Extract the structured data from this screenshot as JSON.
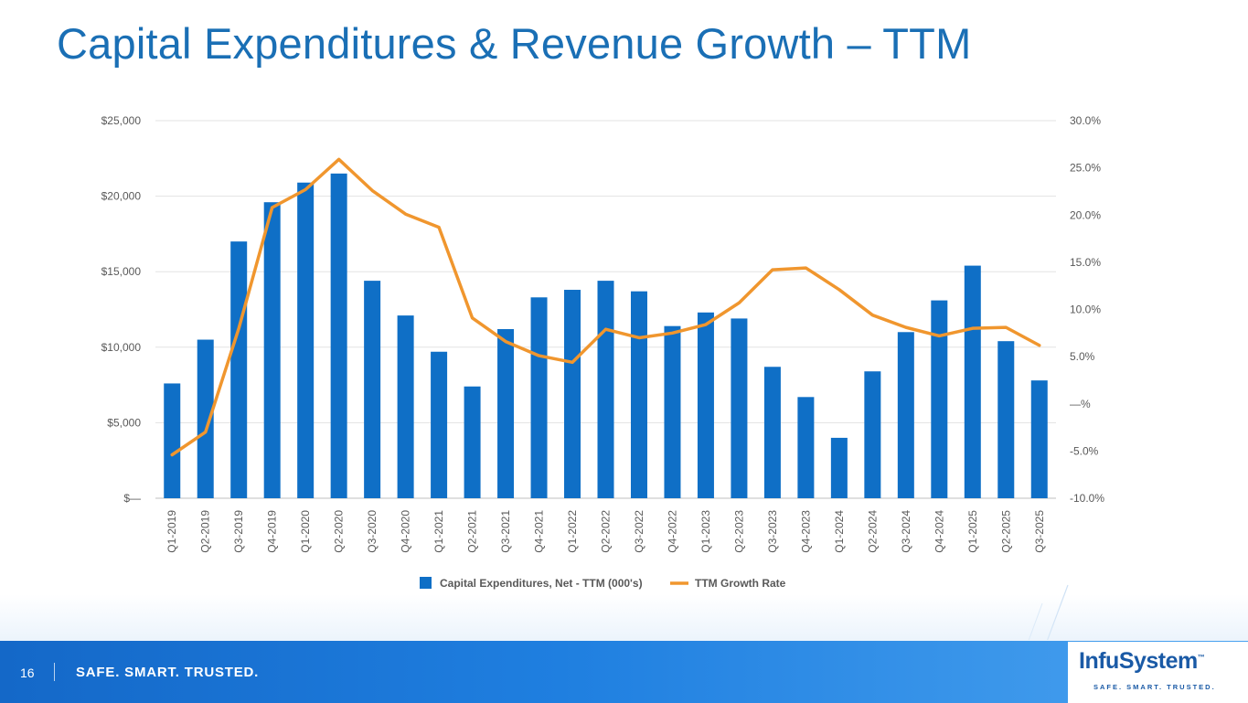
{
  "title": "Capital Expenditures & Revenue Growth – TTM",
  "footer": {
    "page_number": "16",
    "tagline": "SAFE. SMART. TRUSTED.",
    "logo_text_a": "Infu",
    "logo_text_b": "System",
    "logo_tagline": "SAFE. SMART. TRUSTED.",
    "logo_tm": "™"
  },
  "colors": {
    "bar": "#0f6fc6",
    "line": "#f0962e",
    "title": "#1a6fb5",
    "grid": "#e3e3e3",
    "axis_text": "#595959"
  },
  "chart_data": {
    "type": "bar",
    "title": "",
    "categories": [
      "Q1-2019",
      "Q2-2019",
      "Q3-2019",
      "Q4-2019",
      "Q1-2020",
      "Q2-2020",
      "Q3-2020",
      "Q4-2020",
      "Q1-2021",
      "Q2-2021",
      "Q3-2021",
      "Q4-2021",
      "Q1-2022",
      "Q2-2022",
      "Q3-2022",
      "Q4-2022",
      "Q1-2023",
      "Q2-2023",
      "Q3-2023",
      "Q4-2023",
      "Q1-2024",
      "Q2-2024",
      "Q3-2024",
      "Q4-2024",
      "Q1-2025",
      "Q2-2025",
      "Q3-2025"
    ],
    "series": [
      {
        "name": "Capital Expenditures, Net - TTM (000's)",
        "type": "bar",
        "axis": "left",
        "values": [
          7600,
          10500,
          17000,
          19600,
          20900,
          21500,
          14400,
          12100,
          9700,
          7400,
          11200,
          13300,
          13800,
          14400,
          13700,
          11400,
          12300,
          11900,
          8700,
          6700,
          4000,
          8400,
          11000,
          13100,
          15400,
          10400,
          7800
        ]
      },
      {
        "name": "TTM Growth Rate",
        "type": "line",
        "axis": "right",
        "values": [
          -5.4,
          -3.0,
          8.0,
          20.8,
          22.7,
          25.9,
          22.6,
          20.1,
          18.7,
          9.1,
          6.6,
          5.1,
          4.4,
          7.9,
          7.0,
          7.5,
          8.4,
          10.7,
          14.2,
          14.4,
          12.1,
          9.4,
          8.1,
          7.2,
          8.0,
          8.1,
          6.2
        ]
      }
    ],
    "ylim": [
      0,
      25000
    ],
    "y2lim": [
      -10,
      30
    ],
    "y_ticks": [
      0,
      5000,
      10000,
      15000,
      20000,
      25000
    ],
    "y_tick_labels": [
      "$—",
      "$5,000",
      "$10,000",
      "$15,000",
      "$20,000",
      "$25,000"
    ],
    "y2_ticks": [
      -10,
      -5,
      0,
      5,
      10,
      15,
      20,
      25,
      30
    ],
    "y2_tick_labels": [
      "-10.0%",
      "-5.0%",
      "—%",
      "5.0%",
      "10.0%",
      "15.0%",
      "20.0%",
      "25.0%",
      "30.0%"
    ],
    "xlabel": "",
    "ylabel": "",
    "grid": true,
    "legend_position": "bottom-center"
  }
}
